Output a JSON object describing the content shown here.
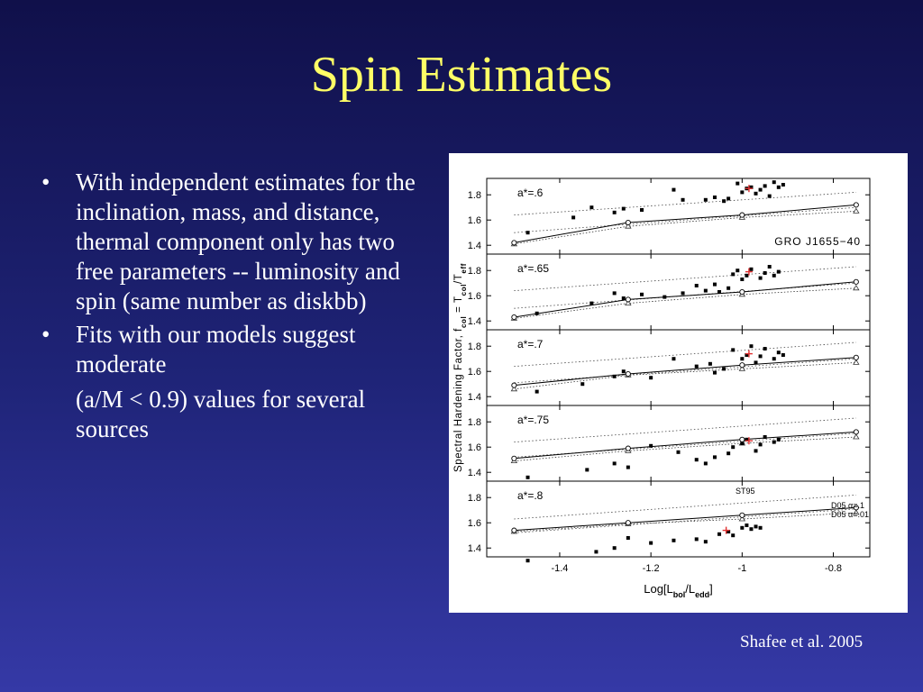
{
  "slide": {
    "title": "Spin Estimates",
    "bullets": [
      "With independent estimates for the inclination, mass, and distance, thermal component only has two free parameters -- luminosity and spin (same number as diskbb)",
      "Fits with our models suggest moderate"
    ],
    "continuation": "(a/M < 0.9) values for several sources",
    "bullet_symbol": "•",
    "credit": "Shafee et al. 2005"
  },
  "colors": {
    "title": "#ffff66",
    "text": "#ffffff",
    "marker_highlight": "#e03030"
  },
  "chart_data": {
    "type": "scatter",
    "ylabel_parts": [
      "Spectral Hardening Factor, f",
      "col",
      " = T",
      "col",
      "/T",
      "eff"
    ],
    "xlabel_parts": [
      "Log[L",
      "bol",
      "/L",
      "edd",
      "]"
    ],
    "source_label": "GRO J1655−40",
    "xticks": [
      "-1.4",
      "-1.2",
      "-1",
      "-0.8"
    ],
    "xtick_values": [
      -1.4,
      -1.2,
      -1.0,
      -0.8
    ],
    "yticks": [
      "1.4",
      "1.6",
      "1.8"
    ],
    "ytick_values": [
      1.4,
      1.6,
      1.8
    ],
    "xlim": [
      -1.56,
      -0.72
    ],
    "ylim": [
      1.33,
      1.93
    ],
    "legend": {
      "st95": "ST95",
      "d05_a1": "D05  α=.1",
      "d05_a01": "D05  α=.01"
    },
    "panels": [
      {
        "label": "a*=.6",
        "d05_a1": {
          "x": [
            -1.5,
            -1.25,
            -1.0,
            -0.75
          ],
          "y": [
            1.42,
            1.58,
            1.64,
            1.72
          ]
        },
        "d05_a01": {
          "x": [
            -1.5,
            -1.25,
            -1.0,
            -0.75
          ],
          "y": [
            1.41,
            1.55,
            1.62,
            1.67
          ]
        },
        "st95_upper": {
          "x": [
            -1.5,
            -0.75
          ],
          "y": [
            1.64,
            1.82
          ]
        },
        "st95_lower": {
          "x": [
            -1.5,
            -0.75
          ],
          "y": [
            1.5,
            1.7
          ]
        },
        "points": {
          "x": [
            -1.47,
            -1.37,
            -1.33,
            -1.28,
            -1.26,
            -1.22,
            -1.15,
            -1.13,
            -1.08,
            -1.06,
            -1.04,
            -1.03,
            -1.01,
            -1.0,
            -0.99,
            -0.98,
            -0.97,
            -0.96,
            -0.95,
            -0.94,
            -0.93,
            -0.92,
            -0.91
          ],
          "y": [
            1.5,
            1.62,
            1.7,
            1.66,
            1.69,
            1.68,
            1.84,
            1.76,
            1.76,
            1.78,
            1.75,
            1.77,
            1.89,
            1.82,
            1.85,
            1.86,
            1.81,
            1.84,
            1.87,
            1.79,
            1.9,
            1.86,
            1.88
          ]
        },
        "highlight": {
          "x": -0.985,
          "y": 1.85
        }
      },
      {
        "label": "a*=.65",
        "d05_a1": {
          "x": [
            -1.5,
            -1.25,
            -1.0,
            -0.75
          ],
          "y": [
            1.43,
            1.57,
            1.63,
            1.71
          ]
        },
        "d05_a01": {
          "x": [
            -1.5,
            -1.25,
            -1.0,
            -0.75
          ],
          "y": [
            1.42,
            1.54,
            1.61,
            1.66
          ]
        },
        "st95_upper": {
          "x": [
            -1.5,
            -0.75
          ],
          "y": [
            1.64,
            1.83
          ]
        },
        "st95_lower": {
          "x": [
            -1.5,
            -0.75
          ],
          "y": [
            1.5,
            1.7
          ]
        },
        "points": {
          "x": [
            -1.45,
            -1.33,
            -1.28,
            -1.26,
            -1.22,
            -1.17,
            -1.13,
            -1.1,
            -1.08,
            -1.06,
            -1.05,
            -1.03,
            -1.02,
            -1.01,
            -1.0,
            -0.99,
            -0.98,
            -0.96,
            -0.95,
            -0.94,
            -0.93,
            -0.92
          ],
          "y": [
            1.46,
            1.54,
            1.62,
            1.58,
            1.61,
            1.59,
            1.62,
            1.68,
            1.64,
            1.69,
            1.63,
            1.66,
            1.77,
            1.8,
            1.73,
            1.76,
            1.81,
            1.74,
            1.78,
            1.83,
            1.76,
            1.79
          ]
        },
        "highlight": {
          "x": -0.985,
          "y": 1.79
        }
      },
      {
        "label": "a*=.7",
        "d05_a1": {
          "x": [
            -1.5,
            -1.25,
            -1.0,
            -0.75
          ],
          "y": [
            1.49,
            1.58,
            1.65,
            1.71
          ]
        },
        "d05_a01": {
          "x": [
            -1.5,
            -1.25,
            -1.0,
            -0.75
          ],
          "y": [
            1.46,
            1.57,
            1.62,
            1.67
          ]
        },
        "st95_upper": {
          "x": [
            -1.5,
            -0.75
          ],
          "y": [
            1.64,
            1.83
          ]
        },
        "st95_lower": {
          "x": [
            -1.5,
            -0.75
          ],
          "y": [
            1.51,
            1.7
          ]
        },
        "points": {
          "x": [
            -1.45,
            -1.35,
            -1.28,
            -1.26,
            -1.2,
            -1.15,
            -1.1,
            -1.07,
            -1.06,
            -1.04,
            -1.02,
            -1.0,
            -0.99,
            -0.98,
            -0.97,
            -0.96,
            -0.95,
            -0.93,
            -0.92,
            -0.91
          ],
          "y": [
            1.44,
            1.5,
            1.56,
            1.6,
            1.55,
            1.7,
            1.64,
            1.66,
            1.59,
            1.62,
            1.77,
            1.7,
            1.73,
            1.8,
            1.67,
            1.72,
            1.78,
            1.7,
            1.75,
            1.73
          ]
        },
        "highlight": {
          "x": -0.985,
          "y": 1.74
        }
      },
      {
        "label": "a*=.75",
        "d05_a1": {
          "x": [
            -1.5,
            -1.25,
            -1.0,
            -0.75
          ],
          "y": [
            1.51,
            1.59,
            1.66,
            1.72
          ]
        },
        "d05_a01": {
          "x": [
            -1.5,
            -1.25,
            -1.0,
            -0.75
          ],
          "y": [
            1.49,
            1.57,
            1.63,
            1.68
          ]
        },
        "st95_upper": {
          "x": [
            -1.5,
            -0.75
          ],
          "y": [
            1.64,
            1.83
          ]
        },
        "st95_lower": {
          "x": [
            -1.5,
            -0.75
          ],
          "y": [
            1.52,
            1.71
          ]
        },
        "points": {
          "x": [
            -1.47,
            -1.34,
            -1.28,
            -1.25,
            -1.2,
            -1.14,
            -1.1,
            -1.08,
            -1.06,
            -1.03,
            -1.02,
            -1.0,
            -0.99,
            -0.97,
            -0.96,
            -0.95,
            -0.93,
            -0.92
          ],
          "y": [
            1.36,
            1.42,
            1.47,
            1.44,
            1.61,
            1.56,
            1.5,
            1.47,
            1.52,
            1.55,
            1.6,
            1.63,
            1.66,
            1.57,
            1.62,
            1.68,
            1.64,
            1.66
          ]
        },
        "highlight": {
          "x": -0.985,
          "y": 1.65
        }
      },
      {
        "label": "a*=.8",
        "d05_a1": {
          "x": [
            -1.5,
            -1.25,
            -1.0,
            -0.75
          ],
          "y": [
            1.54,
            1.6,
            1.66,
            1.72
          ]
        },
        "d05_a01": {
          "x": [
            -1.5,
            -1.25,
            -1.0,
            -0.75
          ],
          "y": [
            1.53,
            1.59,
            1.63,
            1.68
          ]
        },
        "st95_upper": {
          "x": [
            -1.5,
            -0.75
          ],
          "y": [
            1.63,
            1.82
          ]
        },
        "st95_lower": {
          "x": [
            -1.5,
            -0.75
          ],
          "y": [
            1.52,
            1.71
          ]
        },
        "points": {
          "x": [
            -1.47,
            -1.32,
            -1.28,
            -1.25,
            -1.2,
            -1.15,
            -1.1,
            -1.08,
            -1.05,
            -1.03,
            -1.02,
            -1.0,
            -0.99,
            -0.98,
            -0.97,
            -0.96
          ],
          "y": [
            1.3,
            1.37,
            1.4,
            1.48,
            1.44,
            1.46,
            1.47,
            1.45,
            1.51,
            1.53,
            1.5,
            1.56,
            1.58,
            1.55,
            1.57,
            1.56
          ]
        },
        "highlight": {
          "x": -1.035,
          "y": 1.54
        }
      }
    ]
  }
}
